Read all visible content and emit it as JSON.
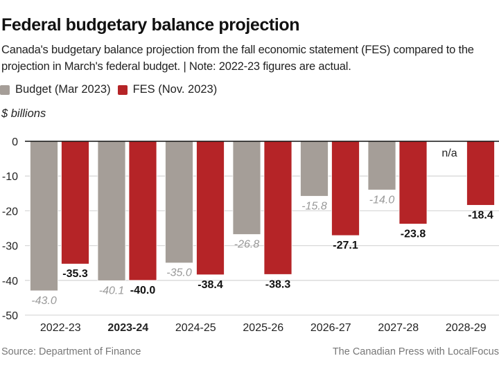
{
  "header": {
    "title": "Federal budgetary balance projection",
    "subtitle": "Canada's budgetary balance projection from the fall economic statement (FES) compared to the projection in March's federal budget. | Note: 2022-23 figures are actual."
  },
  "footer": {
    "source": "Source:  Department of Finance",
    "credit": "The Canadian Press with LocalFocus"
  },
  "chart_data": {
    "type": "bar",
    "title": "Federal budgetary balance projection",
    "ylabel": "$ billions",
    "xlabel": "",
    "ylim": [
      -50,
      0
    ],
    "yticks": [
      0,
      -10,
      -20,
      -30,
      -40,
      -50
    ],
    "grid": true,
    "legend_position": "top-left",
    "categories": [
      "2022-23",
      "2023-24",
      "2024-25",
      "2025-26",
      "2026-27",
      "2027-28",
      "2028-29"
    ],
    "highlighted_category": "2023-24",
    "series": [
      {
        "name": "Budget (Mar 2023)",
        "color": "#a59e98",
        "values": [
          -43.0,
          -40.1,
          -35.0,
          -26.8,
          -15.8,
          -14.0,
          null
        ],
        "labels": [
          "-43.0",
          "-40.1",
          "-35.0",
          "-26.8",
          "-15.8",
          "-14.0",
          "n/a"
        ]
      },
      {
        "name": "FES (Nov. 2023)",
        "color": "#b52427",
        "values": [
          -35.3,
          -40.0,
          -38.4,
          -38.3,
          -27.1,
          -23.8,
          -18.4
        ],
        "labels": [
          "-35.3",
          "-40.0",
          "-38.4",
          "-38.3",
          "-27.1",
          "-23.8",
          "-18.4"
        ]
      }
    ]
  }
}
